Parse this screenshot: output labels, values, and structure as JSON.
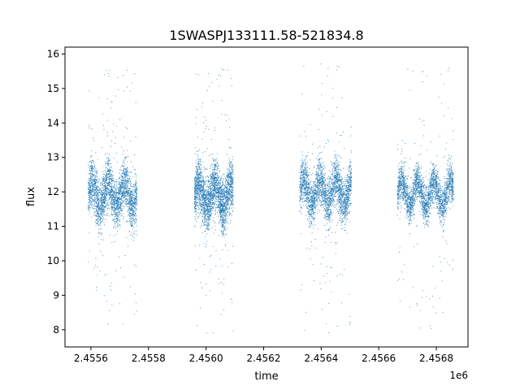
{
  "chart_data": {
    "type": "scatter",
    "title": "1SWASPJ133111.58-521834.8",
    "xlabel": "time",
    "ylabel": "flux",
    "x_offset_label": "1e6",
    "x_display_scale": 1000000,
    "xlim": [
      2455510,
      2456910
    ],
    "ylim": [
      7.5,
      16.2
    ],
    "x_ticks": [
      2455600,
      2455800,
      2456000,
      2456200,
      2456400,
      2456600,
      2456800
    ],
    "x_tick_labels": [
      "2.4556",
      "2.4558",
      "2.4560",
      "2.4562",
      "2.4564",
      "2.4566",
      "2.4568"
    ],
    "y_ticks": [
      8,
      9,
      10,
      11,
      12,
      13,
      14,
      15,
      16
    ],
    "y_tick_labels": [
      "8",
      "9",
      "10",
      "11",
      "12",
      "13",
      "14",
      "15",
      "16"
    ],
    "grid": false,
    "legend": "none",
    "marker_color": "#1f77b4",
    "series": [
      {
        "segments": [
          {
            "x_start": 2455590,
            "x_end": 2455760,
            "y_center": 11.9,
            "y_spread": 0.7,
            "y_min": 7.9,
            "y_max": 15.6,
            "outlier_frac": 0.06
          },
          {
            "x_start": 2455960,
            "x_end": 2456095,
            "y_center": 11.9,
            "y_spread": 0.75,
            "y_min": 7.9,
            "y_max": 15.6,
            "outlier_frac": 0.06
          },
          {
            "x_start": 2456325,
            "x_end": 2456505,
            "y_center": 12.0,
            "y_spread": 0.65,
            "y_min": 7.9,
            "y_max": 15.75,
            "outlier_frac": 0.06
          },
          {
            "x_start": 2456665,
            "x_end": 2456860,
            "y_center": 11.95,
            "y_spread": 0.55,
            "y_min": 7.9,
            "y_max": 15.65,
            "outlier_frac": 0.05
          }
        ]
      }
    ]
  }
}
